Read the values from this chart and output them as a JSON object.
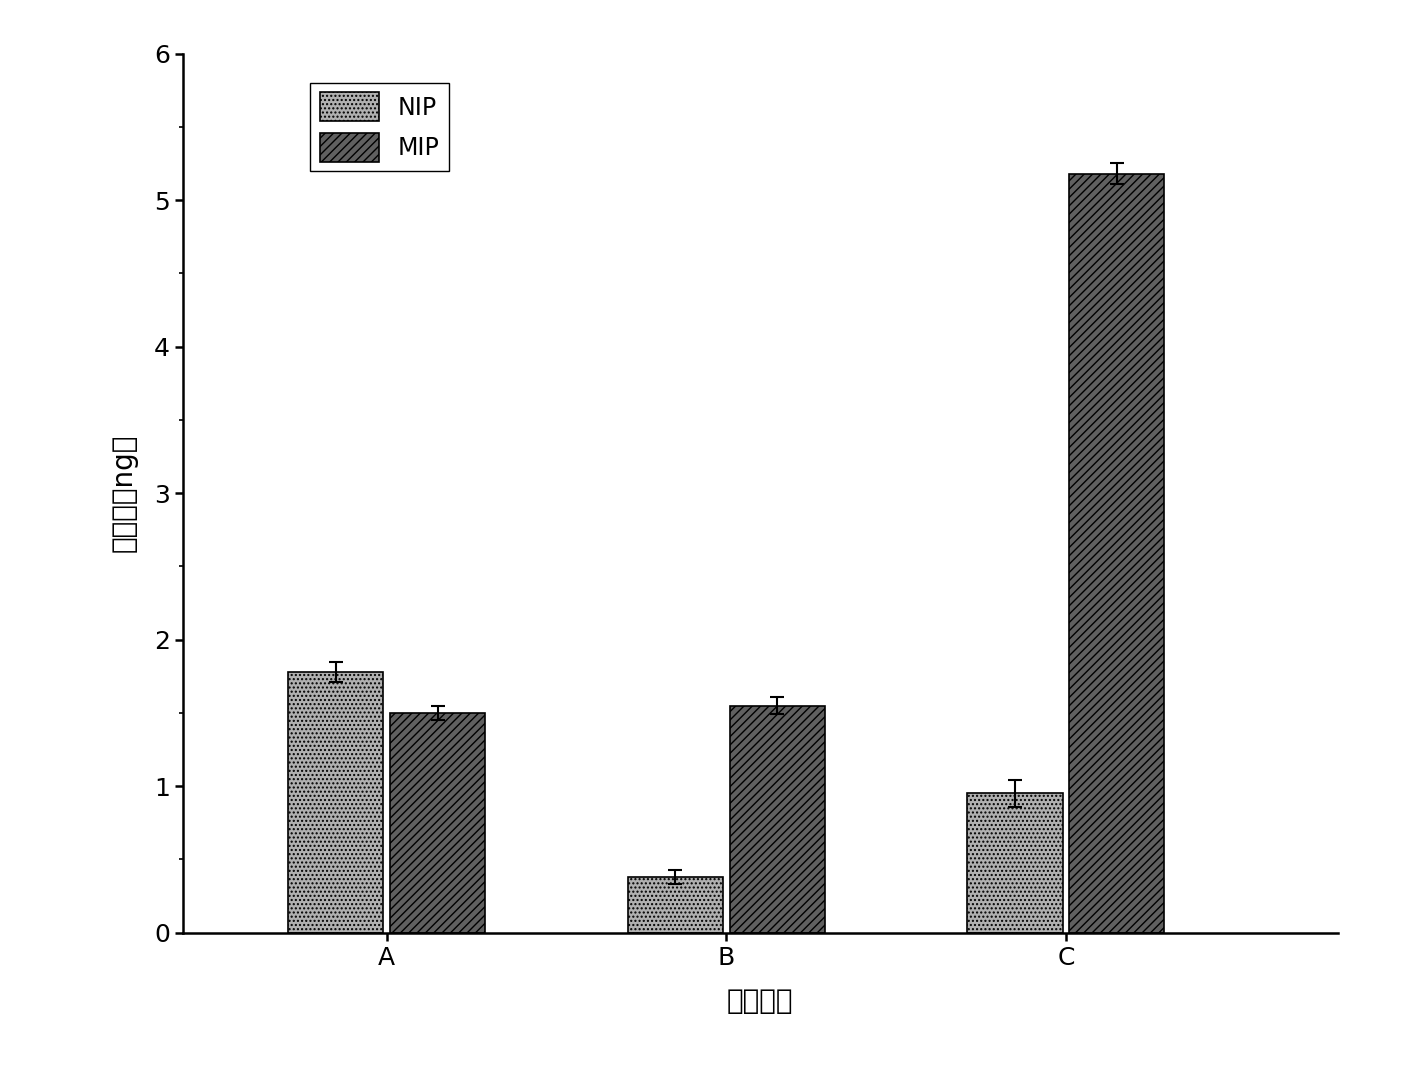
{
  "categories": [
    "A",
    "B",
    "C"
  ],
  "nip_values": [
    1.78,
    0.38,
    0.95
  ],
  "mip_values": [
    1.5,
    1.55,
    5.18
  ],
  "nip_errors": [
    0.07,
    0.05,
    0.09
  ],
  "mip_errors": [
    0.05,
    0.06,
    0.07
  ],
  "nip_color": "#b0b0b0",
  "mip_color": "#606060",
  "xlabel": "萍取形式",
  "ylabel": "萍取量（ng）",
  "ylim": [
    0,
    6
  ],
  "yticks": [
    0,
    1,
    2,
    3,
    4,
    5,
    6
  ],
  "legend_labels": [
    "NIP",
    "MIP"
  ],
  "bar_width": 0.28,
  "label_fontsize": 20,
  "tick_fontsize": 18,
  "legend_fontsize": 17,
  "background_color": "#ffffff",
  "x_positions": [
    1.0,
    2.0,
    3.0
  ],
  "xlim": [
    0.4,
    3.8
  ]
}
